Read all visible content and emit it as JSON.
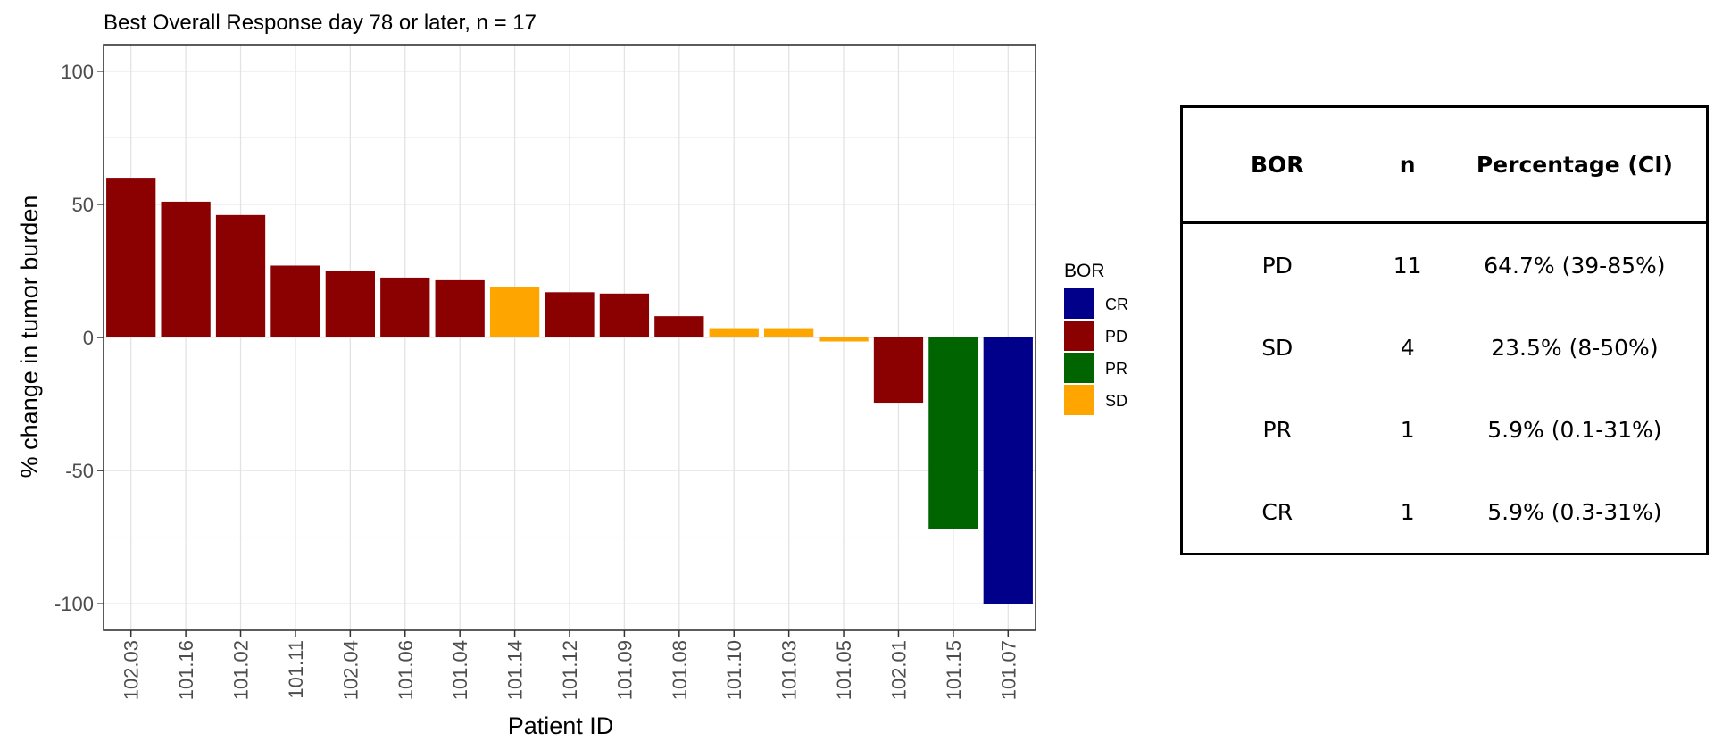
{
  "chart_data": {
    "type": "bar",
    "title": "Best Overall Response day 78 or later, n = 17",
    "xlabel": "Patient ID",
    "ylabel": "% change in tumor burden",
    "ylim": [
      -110,
      110
    ],
    "yticks": [
      -100,
      -50,
      0,
      50,
      100
    ],
    "grid": true,
    "categories": [
      "102.03",
      "101.16",
      "101.02",
      "101.11",
      "102.04",
      "101.06",
      "101.04",
      "101.14",
      "101.12",
      "101.09",
      "101.08",
      "101.10",
      "101.03",
      "101.05",
      "102.01",
      "101.15",
      "101.07"
    ],
    "values": [
      60,
      51,
      46,
      27,
      25,
      22.5,
      21.5,
      19,
      17,
      16.5,
      8,
      3.5,
      3.5,
      -1.5,
      -24.5,
      -72,
      -100
    ],
    "groups": [
      "PD",
      "PD",
      "PD",
      "PD",
      "PD",
      "PD",
      "PD",
      "SD",
      "PD",
      "PD",
      "PD",
      "SD",
      "SD",
      "SD",
      "PD",
      "PR",
      "CR"
    ],
    "legend": {
      "title": "BOR",
      "position": "right",
      "entries": [
        {
          "label": "CR",
          "color": "#00008B"
        },
        {
          "label": "PD",
          "color": "#8B0000"
        },
        {
          "label": "PR",
          "color": "#006400"
        },
        {
          "label": "SD",
          "color": "#FFA500"
        }
      ]
    }
  },
  "table": {
    "headers": [
      "BOR",
      "n",
      "Percentage (CI)"
    ],
    "rows": [
      [
        "PD",
        "11",
        "64.7% (39-85%)"
      ],
      [
        "SD",
        "4",
        "23.5% (8-50%)"
      ],
      [
        "PR",
        "1",
        "5.9% (0.1-31%)"
      ],
      [
        "CR",
        "1",
        "5.9% (0.3-31%)"
      ]
    ]
  }
}
